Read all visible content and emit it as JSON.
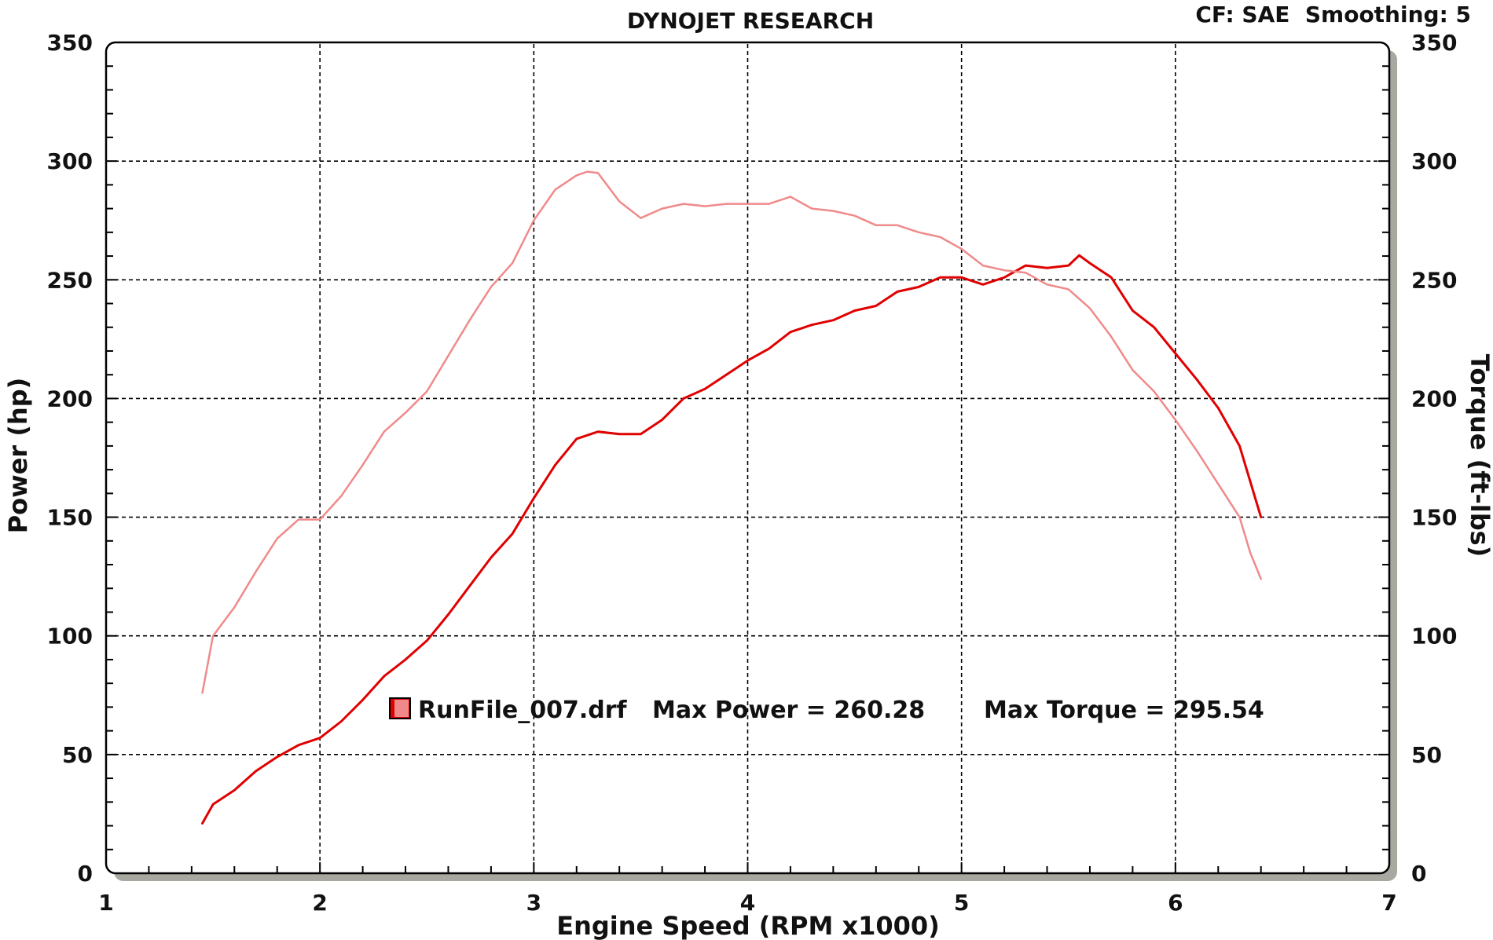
{
  "chart_data": {
    "type": "line",
    "title": "DYNOJET RESEARCH",
    "header_right": "CF: SAE  Smoothing: 5",
    "xlabel": "Engine Speed (RPM x1000)",
    "ylabel_left": "Power (hp)",
    "ylabel_right": "Torque (ft-lbs)",
    "xlim": [
      1,
      7
    ],
    "ylim": [
      0,
      350
    ],
    "x_ticks": [
      "1",
      "2",
      "3",
      "4",
      "5",
      "6",
      "7"
    ],
    "y_ticks": [
      "0",
      "50",
      "100",
      "150",
      "200",
      "250",
      "300",
      "350"
    ],
    "grid": true,
    "legend": {
      "file": "RunFile_007.drf",
      "max_power_text": "Max Power = 260.28",
      "max_torque_text": "Max Torque = 295.54",
      "placement": "lower-center"
    },
    "colors": {
      "power": "#e00000",
      "torque": "#f08a8a",
      "frame": "#000000",
      "shadow": "#a8a8a0"
    },
    "series": [
      {
        "name": "Power",
        "axis": "left",
        "points": [
          [
            1.45,
            21
          ],
          [
            1.5,
            29
          ],
          [
            1.6,
            35
          ],
          [
            1.7,
            43
          ],
          [
            1.8,
            49
          ],
          [
            1.9,
            54
          ],
          [
            2.0,
            57
          ],
          [
            2.1,
            64
          ],
          [
            2.2,
            73
          ],
          [
            2.3,
            83
          ],
          [
            2.4,
            90
          ],
          [
            2.5,
            98
          ],
          [
            2.6,
            109
          ],
          [
            2.7,
            121
          ],
          [
            2.8,
            133
          ],
          [
            2.9,
            143
          ],
          [
            3.0,
            158
          ],
          [
            3.1,
            172
          ],
          [
            3.2,
            183
          ],
          [
            3.3,
            186
          ],
          [
            3.4,
            185
          ],
          [
            3.5,
            185
          ],
          [
            3.6,
            191
          ],
          [
            3.7,
            200
          ],
          [
            3.8,
            204
          ],
          [
            3.9,
            210
          ],
          [
            4.0,
            216
          ],
          [
            4.1,
            221
          ],
          [
            4.2,
            228
          ],
          [
            4.3,
            231
          ],
          [
            4.4,
            233
          ],
          [
            4.5,
            237
          ],
          [
            4.6,
            239
          ],
          [
            4.7,
            245
          ],
          [
            4.8,
            247
          ],
          [
            4.9,
            251
          ],
          [
            5.0,
            251
          ],
          [
            5.1,
            248
          ],
          [
            5.2,
            251
          ],
          [
            5.3,
            256
          ],
          [
            5.4,
            255
          ],
          [
            5.5,
            256
          ],
          [
            5.55,
            260.28
          ],
          [
            5.6,
            257
          ],
          [
            5.7,
            251
          ],
          [
            5.8,
            237
          ],
          [
            5.9,
            230
          ],
          [
            6.0,
            219
          ],
          [
            6.1,
            208
          ],
          [
            6.2,
            196
          ],
          [
            6.3,
            180
          ],
          [
            6.35,
            165
          ],
          [
            6.4,
            150
          ]
        ]
      },
      {
        "name": "Torque",
        "axis": "right",
        "points": [
          [
            1.45,
            76
          ],
          [
            1.5,
            100
          ],
          [
            1.6,
            112
          ],
          [
            1.7,
            127
          ],
          [
            1.8,
            141
          ],
          [
            1.9,
            149
          ],
          [
            2.0,
            149
          ],
          [
            2.1,
            159
          ],
          [
            2.2,
            172
          ],
          [
            2.3,
            186
          ],
          [
            2.4,
            194
          ],
          [
            2.5,
            203
          ],
          [
            2.6,
            218
          ],
          [
            2.7,
            233
          ],
          [
            2.8,
            247
          ],
          [
            2.9,
            257
          ],
          [
            3.0,
            275
          ],
          [
            3.1,
            288
          ],
          [
            3.2,
            294
          ],
          [
            3.25,
            295.54
          ],
          [
            3.3,
            295
          ],
          [
            3.4,
            283
          ],
          [
            3.5,
            276
          ],
          [
            3.6,
            280
          ],
          [
            3.7,
            282
          ],
          [
            3.8,
            281
          ],
          [
            3.9,
            282
          ],
          [
            4.0,
            282
          ],
          [
            4.1,
            282
          ],
          [
            4.2,
            285
          ],
          [
            4.3,
            280
          ],
          [
            4.4,
            279
          ],
          [
            4.5,
            277
          ],
          [
            4.6,
            273
          ],
          [
            4.7,
            273
          ],
          [
            4.8,
            270
          ],
          [
            4.9,
            268
          ],
          [
            5.0,
            263
          ],
          [
            5.1,
            256
          ],
          [
            5.2,
            254
          ],
          [
            5.3,
            253
          ],
          [
            5.4,
            248
          ],
          [
            5.5,
            246
          ],
          [
            5.6,
            238
          ],
          [
            5.7,
            226
          ],
          [
            5.8,
            212
          ],
          [
            5.9,
            203
          ],
          [
            6.0,
            191
          ],
          [
            6.1,
            178
          ],
          [
            6.2,
            164
          ],
          [
            6.3,
            150
          ],
          [
            6.35,
            135
          ],
          [
            6.4,
            124
          ]
        ]
      }
    ]
  }
}
